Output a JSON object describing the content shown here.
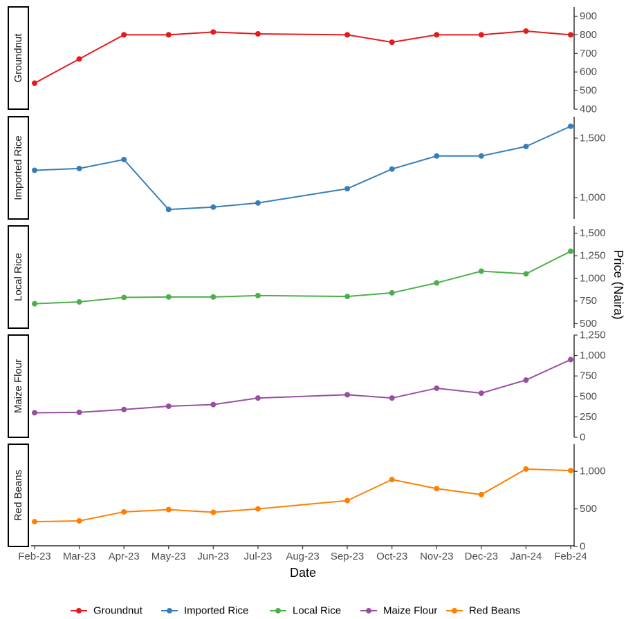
{
  "chart_data": {
    "type": "line",
    "title": "",
    "xlabel": "Date",
    "ylabel": "Price (Naira)",
    "x_tick_labels": [
      "Feb-23",
      "Mar-23",
      "Apr-23",
      "May-23",
      "Jun-23",
      "Jul-23",
      "Aug-23",
      "Sep-23",
      "Oct-23",
      "Nov-23",
      "Dec-23",
      "Jan-24",
      "Feb-24"
    ],
    "grid": false,
    "legend_position": "bottom",
    "facet_strip_position": "left",
    "y_axis_position": "right",
    "panels": [
      {
        "name": "Groundnut",
        "color": "#E41A1C",
        "ylim": [
          400,
          950
        ],
        "y_ticks": [
          400,
          500,
          600,
          700,
          800,
          900
        ],
        "y_tick_labels": [
          "400",
          "500",
          "600",
          "700",
          "800",
          "900"
        ],
        "points": [
          {
            "x": "Feb-23",
            "y": 540
          },
          {
            "x": "Mar-23",
            "y": 670
          },
          {
            "x": "Apr-23",
            "y": 800
          },
          {
            "x": "May-23",
            "y": 800
          },
          {
            "x": "Jun-23",
            "y": 815
          },
          {
            "x": "Jul-23",
            "y": 805
          },
          {
            "x": "Sep-23",
            "y": 800
          },
          {
            "x": "Oct-23",
            "y": 760
          },
          {
            "x": "Nov-23",
            "y": 800
          },
          {
            "x": "Dec-23",
            "y": 800
          },
          {
            "x": "Jan-24",
            "y": 820
          },
          {
            "x": "Feb-24",
            "y": 800
          }
        ]
      },
      {
        "name": "Imported Rice",
        "color": "#377EB8",
        "ylim": [
          820,
          1680
        ],
        "y_ticks": [
          1000,
          1500
        ],
        "y_tick_labels": [
          "1,000",
          "1,500"
        ],
        "points": [
          {
            "x": "Feb-23",
            "y": 1230
          },
          {
            "x": "Mar-23",
            "y": 1245
          },
          {
            "x": "Apr-23",
            "y": 1320
          },
          {
            "x": "May-23",
            "y": 900
          },
          {
            "x": "Jun-23",
            "y": 920
          },
          {
            "x": "Jul-23",
            "y": 955
          },
          {
            "x": "Sep-23",
            "y": 1075
          },
          {
            "x": "Oct-23",
            "y": 1240
          },
          {
            "x": "Nov-23",
            "y": 1350
          },
          {
            "x": "Dec-23",
            "y": 1350
          },
          {
            "x": "Jan-24",
            "y": 1430
          },
          {
            "x": "Feb-24",
            "y": 1600
          }
        ]
      },
      {
        "name": "Local Rice",
        "color": "#4DAF4A",
        "ylim": [
          450,
          1580
        ],
        "y_ticks": [
          500,
          750,
          1000,
          1250,
          1500
        ],
        "y_tick_labels": [
          "500",
          "750",
          "1,000",
          "1,250",
          "1,500"
        ],
        "points": [
          {
            "x": "Feb-23",
            "y": 720
          },
          {
            "x": "Mar-23",
            "y": 740
          },
          {
            "x": "Apr-23",
            "y": 790
          },
          {
            "x": "May-23",
            "y": 795
          },
          {
            "x": "Jun-23",
            "y": 795
          },
          {
            "x": "Jul-23",
            "y": 810
          },
          {
            "x": "Sep-23",
            "y": 800
          },
          {
            "x": "Oct-23",
            "y": 840
          },
          {
            "x": "Nov-23",
            "y": 950
          },
          {
            "x": "Dec-23",
            "y": 1080
          },
          {
            "x": "Jan-24",
            "y": 1050
          },
          {
            "x": "Feb-24",
            "y": 1300
          }
        ]
      },
      {
        "name": "Maize Flour",
        "color": "#984EA3",
        "ylim": [
          0,
          1250
        ],
        "y_ticks": [
          0,
          250,
          500,
          750,
          1000,
          1250
        ],
        "y_tick_labels": [
          "0",
          "250",
          "500",
          "750",
          "1,000",
          "1,250"
        ],
        "points": [
          {
            "x": "Feb-23",
            "y": 300
          },
          {
            "x": "Mar-23",
            "y": 305
          },
          {
            "x": "Apr-23",
            "y": 340
          },
          {
            "x": "May-23",
            "y": 380
          },
          {
            "x": "Jun-23",
            "y": 400
          },
          {
            "x": "Jul-23",
            "y": 480
          },
          {
            "x": "Sep-23",
            "y": 520
          },
          {
            "x": "Oct-23",
            "y": 480
          },
          {
            "x": "Nov-23",
            "y": 600
          },
          {
            "x": "Dec-23",
            "y": 540
          },
          {
            "x": "Jan-24",
            "y": 700
          },
          {
            "x": "Feb-24",
            "y": 950
          }
        ]
      },
      {
        "name": "Red Beans",
        "color": "#FF7F00",
        "ylim": [
          0,
          1360
        ],
        "y_ticks": [
          0,
          500,
          1000
        ],
        "y_tick_labels": [
          "0",
          "500",
          "1,000"
        ],
        "points": [
          {
            "x": "Feb-23",
            "y": 330
          },
          {
            "x": "Mar-23",
            "y": 340
          },
          {
            "x": "Apr-23",
            "y": 460
          },
          {
            "x": "May-23",
            "y": 490
          },
          {
            "x": "Jun-23",
            "y": 455
          },
          {
            "x": "Jul-23",
            "y": 500
          },
          {
            "x": "Sep-23",
            "y": 610
          },
          {
            "x": "Oct-23",
            "y": 890
          },
          {
            "x": "Nov-23",
            "y": 770
          },
          {
            "x": "Dec-23",
            "y": 690
          },
          {
            "x": "Jan-24",
            "y": 1030
          },
          {
            "x": "Feb-24",
            "y": 1010
          }
        ]
      }
    ]
  }
}
